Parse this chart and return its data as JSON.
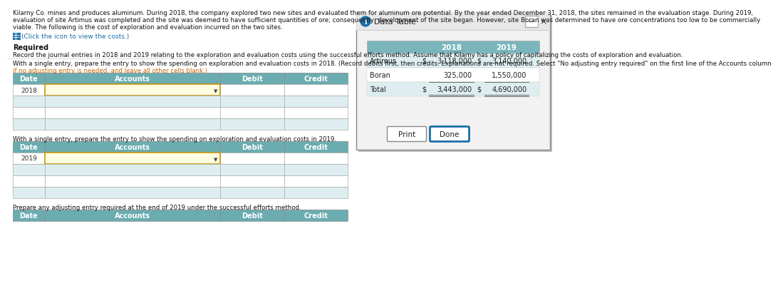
{
  "paragraph_lines": [
    "Kilarny Co. mines and produces aluminum. During 2018, the company explored two new sites and evaluated them for aluminum ore potential. By the year ended December 31, 2018, the sites remained in the evaluation stage. During 2019,",
    "evaluation of site Artimus was completed and the site was deemed to have sufficient quantities of ore; consequently, development of the site began. However, site Boran was determined to have ore concentrations too low to be commercially",
    "viable. The following is the cost of exploration and evaluation incurred on the two sites."
  ],
  "link_text": "(Click the icon to view the costs.)",
  "required_label": "Required",
  "required_text": "Record the journal entries in 2018 and 2019 relating to the exploration and evaluation costs using the successful efforts method. Assume that Kilarny has a policy of capitalizing the costs of exploration and evaluation.",
  "instruction_2018_normal": "With a single entry, prepare the entry to show the spending on exploration and evaluation costs in 2018.",
  "instruction_2018_colored": "(Record debits first, then credits. Explanations are not required. Select \"No adjusting entry required\" on the first line of the Accounts column",
  "instruction_2018_colored2": "if no adjusting entry is needed, and leave all other cells blank.)",
  "instruction_2019": "With a single entry, prepare the entry to show the spending on exploration and evaluation costs in 2019.",
  "instruction_adj": "Prepare any adjusting entry required at the end of 2019 under the successful efforts method.",
  "table_header": [
    "Date",
    "Accounts",
    "Debit",
    "Credit"
  ],
  "header_bg": "#6aacb0",
  "row_alt_bg": "#cce0e3",
  "row_light_bg": "#deeef0",
  "row_white_bg": "#ffffff",
  "data_table_title": "Data Table",
  "data_rows": [
    [
      "Artimus",
      "$",
      "3,118,000",
      "$",
      "3,140,000"
    ],
    [
      "Boran",
      "",
      "325,000",
      "",
      "1,550,000"
    ],
    [
      "Total",
      "$",
      "3,443,000",
      "$",
      "4,690,000"
    ]
  ],
  "data_years": [
    "2018",
    "2019"
  ],
  "popup_bg": "#f0f0f0",
  "popup_inner_bg": "#ffffff",
  "popup_border": "#aaaaaa",
  "data_table_header_bg": "#7ab5bc",
  "teal_header": "#6aacb0"
}
